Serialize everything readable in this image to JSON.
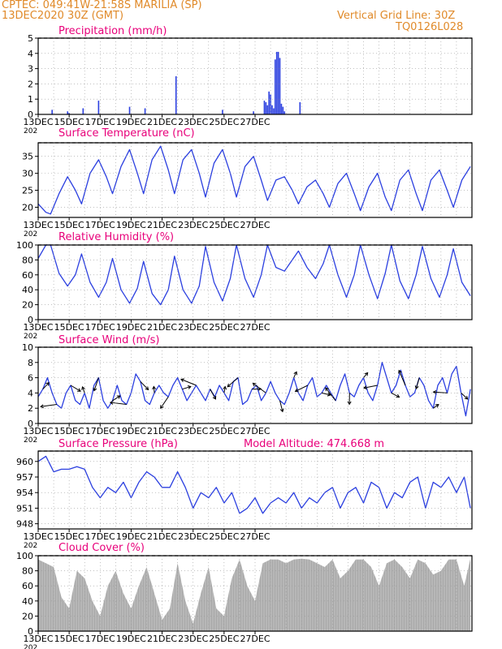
{
  "header": {
    "line1_left": "CPTEC:  049:41W-21:58S  MARILIA (SP)",
    "line2_left": "13DEC2020 30Z (GMT)",
    "line1_right": "Vertical Grid Line: 30Z",
    "line2_right": "TQ0126L028"
  },
  "colors": {
    "header": "#e08a2a",
    "title": "#e8007a",
    "series": "#2b3fe0",
    "cloud": "#a9a9a9",
    "grid": "#9a9a9a"
  },
  "chart_data": [
    {
      "id": "precip",
      "type": "bar",
      "title": "Precipitation (mm/h)",
      "ylim": [
        0,
        5
      ],
      "yticks": [
        "0",
        "1",
        "2",
        "3",
        "4",
        "5"
      ],
      "xticks": [
        "13DEC",
        "15DEC",
        "17DEC",
        "19DEC",
        "21DEC",
        "23DEC",
        "25DEC",
        "27DEC"
      ],
      "x": [
        0.9,
        1.9,
        2.0,
        2.9,
        3.9,
        5.9,
        6.9,
        8.9,
        11.9,
        13.9,
        14.6,
        14.7,
        14.8,
        14.9,
        15.0,
        15.1,
        15.2,
        15.3,
        15.4,
        15.5,
        15.6,
        15.7,
        15.8,
        15.9,
        16.9
      ],
      "values": [
        0.3,
        0.2,
        0.1,
        0.4,
        0.9,
        0.5,
        0.4,
        2.5,
        0.3,
        0.2,
        0.9,
        0.8,
        0.6,
        1.5,
        1.3,
        0.6,
        0.4,
        3.6,
        4.1,
        4.1,
        3.7,
        0.7,
        0.5,
        0.2,
        0.8
      ]
    },
    {
      "id": "temp",
      "type": "line",
      "title": "Surface Temperature (nC)",
      "ylim": [
        17,
        39
      ],
      "yticks": [
        "20",
        "25",
        "30",
        "35"
      ],
      "xticks": [
        "13DEC",
        "15DEC",
        "17DEC",
        "19DEC",
        "21DEC",
        "23DEC",
        "25DEC",
        "27DEC"
      ],
      "x": [
        0,
        0.5,
        0.8,
        1.35,
        1.9,
        2.4,
        2.8,
        3.35,
        3.9,
        4.4,
        4.8,
        5.35,
        5.9,
        6.4,
        6.8,
        7.35,
        7.9,
        8.4,
        8.8,
        9.35,
        9.9,
        10.4,
        10.8,
        11.35,
        11.9,
        12.4,
        12.8,
        13.35,
        13.9,
        14.4,
        14.8,
        15.35,
        15.9,
        16.4,
        16.8,
        17.35,
        17.9,
        18.4,
        18.8,
        19.35,
        19.9,
        20.4,
        20.8,
        21.35,
        21.9,
        22.4,
        22.8,
        23.35,
        23.9,
        24.4,
        24.8,
        25.35,
        25.9,
        26.4,
        26.8,
        27.35,
        27.9
      ],
      "values": [
        21,
        18.5,
        18,
        24,
        29,
        25,
        21,
        30,
        34,
        29,
        24,
        32,
        37,
        30,
        24,
        34,
        38,
        31,
        24,
        34,
        37,
        30,
        23,
        33,
        37,
        30,
        23,
        32,
        35,
        28,
        22,
        28,
        29,
        25,
        21,
        26,
        28,
        24,
        20,
        27,
        30,
        24,
        19,
        26,
        30,
        23,
        19,
        28,
        31,
        24,
        19,
        28,
        31,
        25,
        20,
        28,
        32
      ]
    },
    {
      "id": "rh",
      "type": "line",
      "title": "Relative Humidity (%)",
      "ylim": [
        0,
        100
      ],
      "yticks": [
        "0",
        "20",
        "40",
        "60",
        "80",
        "100"
      ],
      "xticks": [
        "13DEC",
        "15DEC",
        "17DEC",
        "19DEC",
        "21DEC",
        "23DEC",
        "25DEC",
        "27DEC"
      ],
      "x": [
        0,
        0.5,
        0.8,
        1.35,
        1.9,
        2.4,
        2.8,
        3.35,
        3.9,
        4.4,
        4.8,
        5.35,
        5.9,
        6.4,
        6.8,
        7.35,
        7.9,
        8.4,
        8.8,
        9.35,
        9.9,
        10.4,
        10.8,
        11.35,
        11.9,
        12.4,
        12.8,
        13.35,
        13.9,
        14.4,
        14.8,
        15.35,
        15.9,
        16.4,
        16.8,
        17.35,
        17.9,
        18.4,
        18.8,
        19.35,
        19.9,
        20.4,
        20.8,
        21.35,
        21.9,
        22.4,
        22.8,
        23.35,
        23.9,
        24.4,
        24.8,
        25.35,
        25.9,
        26.4,
        26.8,
        27.35,
        27.9
      ],
      "values": [
        82,
        100,
        100,
        62,
        45,
        60,
        88,
        50,
        30,
        50,
        82,
        40,
        22,
        42,
        78,
        35,
        20,
        40,
        85,
        40,
        22,
        45,
        98,
        50,
        25,
        55,
        100,
        55,
        30,
        60,
        100,
        70,
        65,
        80,
        92,
        70,
        55,
        75,
        100,
        60,
        30,
        60,
        100,
        60,
        28,
        62,
        100,
        52,
        28,
        60,
        98,
        55,
        30,
        60,
        95,
        50,
        32
      ]
    },
    {
      "id": "wind",
      "type": "line",
      "title": "Surface Wind (m/s)",
      "ylim": [
        0,
        10
      ],
      "yticks": [
        "0",
        "2",
        "4",
        "6",
        "8",
        "10"
      ],
      "xticks": [
        "13DEC",
        "15DEC",
        "17DEC",
        "19DEC",
        "21DEC",
        "23DEC",
        "25DEC",
        "27DEC"
      ],
      "x": [
        0,
        0.3,
        0.6,
        0.9,
        1.2,
        1.5,
        1.8,
        2.1,
        2.4,
        2.7,
        3.0,
        3.3,
        3.6,
        3.9,
        4.2,
        4.5,
        4.8,
        5.1,
        5.4,
        5.7,
        6.0,
        6.3,
        6.6,
        6.9,
        7.2,
        7.5,
        7.8,
        8.1,
        8.4,
        8.7,
        9.0,
        9.3,
        9.6,
        9.9,
        10.2,
        10.5,
        10.8,
        11.1,
        11.4,
        11.7,
        12.0,
        12.3,
        12.6,
        12.9,
        13.2,
        13.5,
        13.8,
        14.1,
        14.4,
        14.7,
        15.0,
        15.3,
        15.6,
        15.9,
        16.2,
        16.5,
        16.8,
        17.1,
        17.4,
        17.7,
        18.0,
        18.3,
        18.6,
        18.9,
        19.2,
        19.5,
        19.8,
        20.1,
        20.4,
        20.7,
        21.0,
        21.3,
        21.6,
        21.9,
        22.2,
        22.5,
        22.8,
        23.1,
        23.4,
        23.7,
        24.0,
        24.3,
        24.6,
        24.9,
        25.2,
        25.5,
        25.8,
        26.1,
        26.4,
        26.7,
        27.0,
        27.3,
        27.6,
        27.9
      ],
      "values": [
        3.5,
        4.5,
        6,
        4,
        2.5,
        2,
        4,
        5,
        3,
        2.5,
        4,
        2,
        5,
        6,
        3,
        2,
        3,
        5,
        3,
        2.5,
        4,
        6.5,
        5.5,
        3,
        2.5,
        4,
        5,
        4,
        3.5,
        5,
        6,
        4.5,
        3,
        4,
        5,
        4,
        3,
        4.5,
        3.5,
        5,
        4,
        3,
        5.5,
        6,
        2.5,
        3,
        4.5,
        5,
        3,
        4,
        5.5,
        4,
        3,
        2.5,
        4,
        6,
        4,
        3,
        5,
        6,
        3.5,
        4,
        5,
        4,
        3,
        5,
        6.5,
        4,
        3.5,
        5,
        6,
        4,
        3,
        5,
        8,
        6,
        4,
        5,
        7,
        5,
        3.5,
        4,
        6,
        5,
        3,
        2,
        5,
        6,
        4,
        6.5,
        7.5,
        4,
        1,
        4.5
      ]
    },
    {
      "id": "pressure",
      "type": "line",
      "title": "Surface Pressure (hPa)",
      "ylim": [
        947,
        962
      ],
      "yticks": [
        "948",
        "951",
        "954",
        "957",
        "960"
      ],
      "xticks": [
        "13DEC",
        "15DEC",
        "17DEC",
        "19DEC",
        "21DEC",
        "23DEC",
        "25DEC",
        "27DEC"
      ],
      "x": [
        0,
        0.5,
        1.0,
        1.5,
        2.0,
        2.5,
        3.0,
        3.5,
        4.0,
        4.5,
        5.0,
        5.5,
        6.0,
        6.5,
        7.0,
        7.5,
        8.0,
        8.5,
        9.0,
        9.5,
        10.0,
        10.5,
        11.0,
        11.5,
        12.0,
        12.5,
        13.0,
        13.5,
        14.0,
        14.5,
        15.0,
        15.5,
        16.0,
        16.5,
        17.0,
        17.5,
        18.0,
        18.5,
        19.0,
        19.5,
        20.0,
        20.5,
        21.0,
        21.5,
        22.0,
        22.5,
        23.0,
        23.5,
        24.0,
        24.5,
        25.0,
        25.5,
        26.0,
        26.5,
        27.0,
        27.5,
        27.9
      ],
      "values": [
        960,
        961,
        958,
        958.5,
        958.5,
        959,
        958.5,
        955,
        953,
        955,
        954,
        956,
        953,
        956,
        958,
        957,
        955,
        955,
        958,
        955,
        951,
        954,
        953,
        955,
        952,
        954,
        950,
        951,
        953,
        950,
        952,
        953,
        952,
        954,
        951,
        953,
        952,
        954,
        955,
        951,
        954,
        955,
        952,
        956,
        955,
        951,
        954,
        953,
        956,
        957,
        951,
        956,
        955,
        957,
        954,
        957,
        951
      ]
    },
    {
      "id": "cloud",
      "type": "area",
      "title": "Cloud Cover (%)",
      "ylim": [
        0,
        100
      ],
      "yticks": [
        "0",
        "20",
        "40",
        "60",
        "80",
        "100"
      ],
      "xticks": [
        "13DEC",
        "15DEC",
        "17DEC",
        "19DEC",
        "21DEC",
        "23DEC",
        "25DEC",
        "27DEC"
      ],
      "x": [
        0,
        0.5,
        1.0,
        1.5,
        2.0,
        2.5,
        3.0,
        3.5,
        4.0,
        4.5,
        5.0,
        5.5,
        6.0,
        6.5,
        7.0,
        7.5,
        8.0,
        8.5,
        9.0,
        9.5,
        10.0,
        10.5,
        11.0,
        11.5,
        12.0,
        12.5,
        13.0,
        13.5,
        14.0,
        14.5,
        15.0,
        15.5,
        16.0,
        16.5,
        17.0,
        17.5,
        18.0,
        18.5,
        19.0,
        19.5,
        20.0,
        20.5,
        21.0,
        21.5,
        22.0,
        22.5,
        23.0,
        23.5,
        24.0,
        24.5,
        25.0,
        25.5,
        26.0,
        26.5,
        27.0,
        27.5,
        27.9
      ],
      "values": [
        95,
        90,
        85,
        45,
        30,
        80,
        70,
        40,
        20,
        60,
        80,
        50,
        30,
        60,
        85,
        50,
        15,
        30,
        90,
        40,
        10,
        50,
        85,
        30,
        20,
        70,
        95,
        60,
        40,
        90,
        95,
        95,
        90,
        95,
        96,
        95,
        90,
        85,
        95,
        70,
        80,
        95,
        95,
        85,
        60,
        90,
        95,
        85,
        70,
        95,
        90,
        75,
        80,
        95,
        95,
        60,
        96
      ]
    }
  ],
  "extra_labels": {
    "model_altitude": "Model Altitude: 474.668 m",
    "x_clip": "202"
  }
}
